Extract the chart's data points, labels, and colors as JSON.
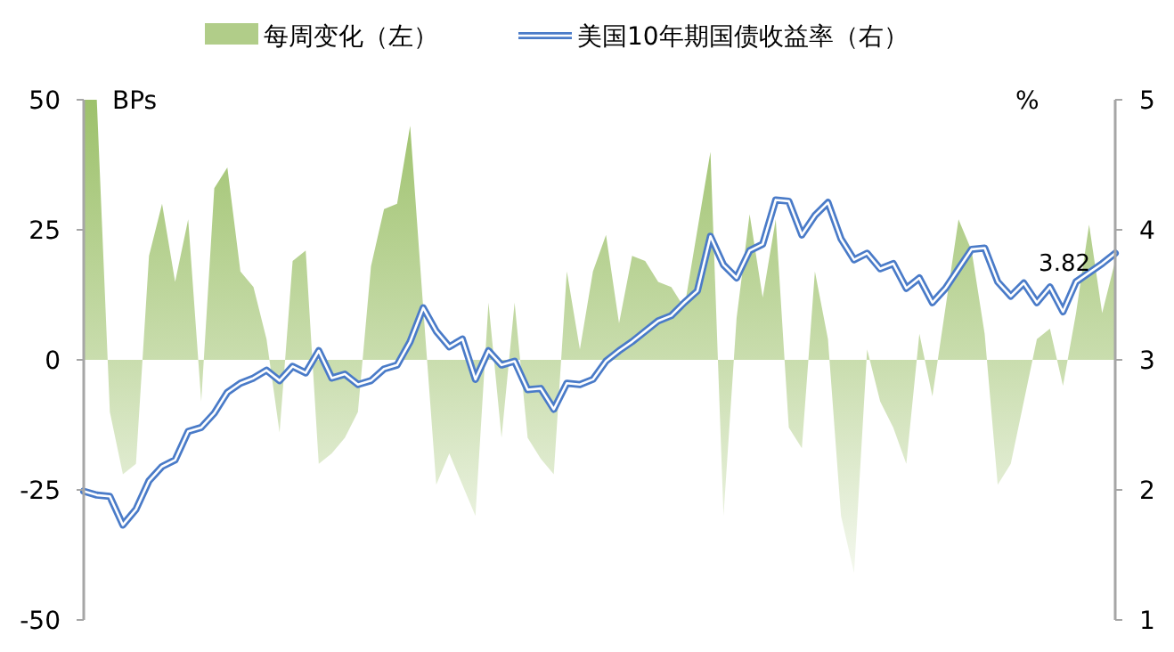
{
  "chart_data": {
    "type": "area",
    "legend": "top",
    "grid": false,
    "ylabel": "BPs",
    "y2label": "%",
    "ylim": [
      -50,
      50
    ],
    "yticks": [
      -50,
      -25,
      0,
      25,
      50
    ],
    "y2lim": [
      1,
      5
    ],
    "y2ticks": [
      1,
      2,
      3,
      4,
      5
    ],
    "categories": [
      null,
      null,
      null,
      null,
      null,
      null,
      null,
      null,
      null,
      null,
      null,
      null,
      null,
      null,
      null,
      null,
      null,
      null,
      null,
      null,
      null,
      null,
      null,
      null,
      null,
      null,
      null,
      null,
      null,
      null,
      null,
      null,
      null,
      null,
      null,
      null,
      null,
      null,
      null,
      null,
      null,
      null,
      null,
      null,
      null,
      null,
      null,
      null,
      null,
      null,
      null,
      null,
      null,
      null,
      null,
      null,
      null,
      null,
      null,
      null,
      null,
      null,
      null,
      null,
      null,
      null,
      null,
      null,
      null,
      null,
      null,
      null,
      null,
      null,
      null,
      null,
      null,
      null,
      null,
      null
    ],
    "series": [
      {
        "name": "每周变化（左）",
        "type": "area",
        "color": "#9dc16b",
        "values": [
          50,
          50,
          -10,
          -22,
          -20,
          20,
          30,
          15,
          27,
          -8,
          33,
          37,
          17,
          14,
          4,
          -14,
          19,
          21,
          -20,
          -18,
          -15,
          -10,
          18,
          29,
          30,
          45,
          10,
          -24,
          -18,
          -24,
          -30,
          11,
          -15,
          11,
          -15,
          -19,
          -22,
          17,
          2,
          17,
          24,
          7,
          20,
          19,
          15,
          14,
          10,
          25,
          40,
          -30,
          8,
          28,
          12,
          27,
          -13,
          -17,
          17,
          4,
          -30,
          -41,
          2,
          -8,
          -13,
          -20,
          5,
          -7,
          10,
          27,
          21,
          5,
          -24,
          -20,
          -8,
          4,
          6,
          -5,
          9,
          26,
          9,
          19
        ]
      },
      {
        "name": "美国10年期国债收益率（右）",
        "type": "line",
        "axis": "y2",
        "color": "#4a7bc8",
        "values": [
          1.99,
          1.96,
          1.95,
          1.73,
          1.85,
          2.07,
          2.18,
          2.23,
          2.45,
          2.48,
          2.59,
          2.75,
          2.82,
          2.86,
          2.92,
          2.84,
          2.95,
          2.9,
          3.07,
          2.86,
          2.89,
          2.81,
          2.84,
          2.93,
          2.96,
          3.14,
          3.4,
          3.22,
          3.1,
          3.16,
          2.85,
          3.07,
          2.96,
          2.99,
          2.77,
          2.78,
          2.62,
          2.82,
          2.81,
          2.85,
          2.99,
          3.07,
          3.14,
          3.22,
          3.3,
          3.34,
          3.44,
          3.53,
          3.95,
          3.73,
          3.63,
          3.84,
          3.89,
          4.23,
          4.22,
          3.96,
          4.11,
          4.21,
          3.93,
          3.77,
          3.82,
          3.7,
          3.74,
          3.55,
          3.63,
          3.44,
          3.55,
          3.7,
          3.85,
          3.86,
          3.6,
          3.49,
          3.59,
          3.44,
          3.56,
          3.37,
          3.6,
          3.67,
          3.74,
          3.82
        ]
      }
    ],
    "annotations": [
      "3.82"
    ]
  }
}
